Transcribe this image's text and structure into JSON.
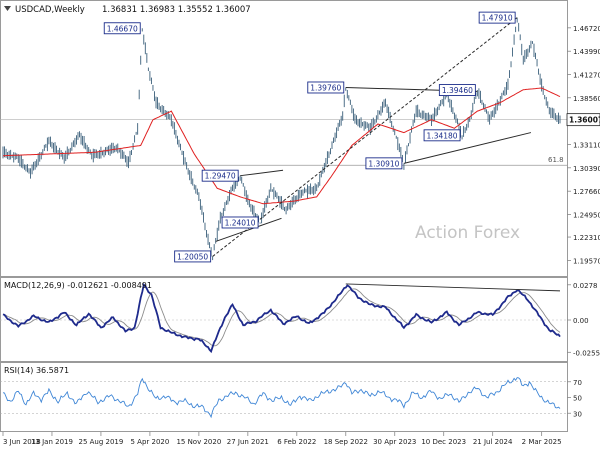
{
  "window": {
    "symbol": "USDCAD,Weekly",
    "ohlc_text": "1.36831 1.36983 1.35552 1.36007",
    "dropdown_icon": "triangle-down-icon"
  },
  "watermark": "Action Forex",
  "colors": {
    "price_line": "#3a5f7a",
    "ma_line": "#e02020",
    "macd_line": "#1e2a8c",
    "signal_line": "#8c8c8c",
    "rsi_line": "#3f86d6",
    "box_border": "#1a2c8a",
    "box_fill": "#ffffff",
    "trend_line": "#2a2a2a",
    "grid": "#c8c8c8"
  },
  "chart_data": [
    {
      "id": "price",
      "type": "line",
      "ylim": [
        1.18,
        1.495
      ],
      "y_ticks": [
        "1.46720",
        "1.43990",
        "1.41270",
        "1.38560",
        "1.33110",
        "1.30390",
        "1.27660",
        "1.24950",
        "1.22310",
        "1.19570"
      ],
      "y_tick_values": [
        1.4672,
        1.4399,
        1.4127,
        1.3856,
        1.3311,
        1.3039,
        1.2766,
        1.2495,
        1.2231,
        1.1957
      ],
      "current_price": "1.36007",
      "current_price_value": 1.36007,
      "fib_label": "61.8",
      "fib_value": 1.3069,
      "x_tick_labels": [
        "3 Jun 2018",
        "13 Jan 2019",
        "25 Aug 2019",
        "5 Apr 2020",
        "15 Nov 2020",
        "27 Jun 2021",
        "6 Feb 2022",
        "18 Sep 2022",
        "30 Apr 2023",
        "10 Dec 2023",
        "21 Jul 2024",
        "2 Mar 2025"
      ],
      "x_tick_index": [
        0,
        32,
        64,
        96,
        128,
        160,
        192,
        224,
        256,
        288,
        320,
        352
      ],
      "anchors": [
        [
          0,
          1.322
        ],
        [
          10,
          1.315
        ],
        [
          18,
          1.298
        ],
        [
          30,
          1.335
        ],
        [
          40,
          1.315
        ],
        [
          50,
          1.342
        ],
        [
          58,
          1.318
        ],
        [
          66,
          1.322
        ],
        [
          74,
          1.328
        ],
        [
          82,
          1.31
        ],
        [
          88,
          1.35
        ],
        [
          91,
          1.4667
        ],
        [
          95,
          1.42
        ],
        [
          100,
          1.38
        ],
        [
          110,
          1.36
        ],
        [
          120,
          1.305
        ],
        [
          128,
          1.27
        ],
        [
          134,
          1.22
        ],
        [
          137,
          1.2005
        ],
        [
          142,
          1.245
        ],
        [
          150,
          1.28
        ],
        [
          155,
          1.2947
        ],
        [
          160,
          1.265
        ],
        [
          168,
          1.2401
        ],
        [
          175,
          1.28
        ],
        [
          185,
          1.255
        ],
        [
          195,
          1.275
        ],
        [
          205,
          1.28
        ],
        [
          213,
          1.32
        ],
        [
          222,
          1.365
        ],
        [
          224,
          1.3976
        ],
        [
          230,
          1.36
        ],
        [
          240,
          1.35
        ],
        [
          250,
          1.38
        ],
        [
          262,
          1.3091
        ],
        [
          270,
          1.37
        ],
        [
          280,
          1.36
        ],
        [
          290,
          1.39
        ],
        [
          300,
          1.3418
        ],
        [
          305,
          1.36
        ],
        [
          310,
          1.3946
        ],
        [
          318,
          1.36
        ],
        [
          330,
          1.4
        ],
        [
          336,
          1.4791
        ],
        [
          340,
          1.43
        ],
        [
          346,
          1.45
        ],
        [
          352,
          1.4
        ],
        [
          357,
          1.37
        ],
        [
          364,
          1.36
        ]
      ],
      "ma_anchors": [
        [
          0,
          1.318
        ],
        [
          30,
          1.32
        ],
        [
          60,
          1.322
        ],
        [
          90,
          1.33
        ],
        [
          98,
          1.36
        ],
        [
          110,
          1.37
        ],
        [
          125,
          1.32
        ],
        [
          140,
          1.28
        ],
        [
          155,
          1.27
        ],
        [
          170,
          1.262
        ],
        [
          190,
          1.265
        ],
        [
          205,
          1.27
        ],
        [
          215,
          1.295
        ],
        [
          228,
          1.33
        ],
        [
          245,
          1.355
        ],
        [
          262,
          1.345
        ],
        [
          280,
          1.36
        ],
        [
          295,
          1.35
        ],
        [
          310,
          1.37
        ],
        [
          325,
          1.38
        ],
        [
          340,
          1.395
        ],
        [
          352,
          1.397
        ],
        [
          364,
          1.387
        ]
      ],
      "trendlines": [
        [
          [
            137,
            1.2005
          ],
          [
            336,
            1.4791
          ]
        ],
        [
          [
            224,
            1.3976
          ],
          [
            310,
            1.393
          ]
        ],
        [
          [
            262,
            1.3091
          ],
          [
            345,
            1.345
          ]
        ],
        [
          [
            155,
            1.2947
          ],
          [
            183,
            1.301
          ]
        ],
        [
          [
            139,
            1.218
          ],
          [
            182,
            1.245
          ]
        ]
      ],
      "annotations": [
        {
          "label": "1.46670",
          "at": [
            91,
            1.4667
          ]
        },
        {
          "label": "1.47910",
          "at": [
            336,
            1.4791
          ]
        },
        {
          "label": "1.39760",
          "at": [
            224,
            1.3976
          ]
        },
        {
          "label": "1.39460",
          "at": [
            310,
            1.3946
          ]
        },
        {
          "label": "1.34180",
          "at": [
            300,
            1.3418
          ]
        },
        {
          "label": "1.30910",
          "at": [
            262,
            1.3091
          ]
        },
        {
          "label": "1.29470",
          "at": [
            155,
            1.2947
          ]
        },
        {
          "label": "1.24010",
          "at": [
            168,
            1.2401
          ]
        },
        {
          "label": "1.20050",
          "at": [
            137,
            1.2005
          ]
        }
      ]
    },
    {
      "id": "macd",
      "type": "line",
      "title": "MACD(12,26,9) -0.012621 -0.008491",
      "ylim": [
        -0.03,
        0.03
      ],
      "y_ticks": [
        "0.0278",
        "0.00",
        "-0.025511"
      ],
      "y_tick_values": [
        0.0278,
        0.0,
        -0.025511
      ],
      "macd_anchors": [
        [
          0,
          0.004
        ],
        [
          10,
          -0.005
        ],
        [
          20,
          0.003
        ],
        [
          30,
          -0.002
        ],
        [
          40,
          0.006
        ],
        [
          48,
          -0.004
        ],
        [
          56,
          0.005
        ],
        [
          64,
          -0.006
        ],
        [
          72,
          0.002
        ],
        [
          80,
          -0.009
        ],
        [
          86,
          -0.006
        ],
        [
          92,
          0.028
        ],
        [
          97,
          0.02
        ],
        [
          103,
          -0.006
        ],
        [
          110,
          -0.01
        ],
        [
          120,
          -0.014
        ],
        [
          128,
          -0.015
        ],
        [
          136,
          -0.024
        ],
        [
          145,
          0.002
        ],
        [
          150,
          0.012
        ],
        [
          157,
          -0.004
        ],
        [
          165,
          -0.001
        ],
        [
          175,
          0.008
        ],
        [
          183,
          -0.003
        ],
        [
          192,
          0.003
        ],
        [
          200,
          -0.003
        ],
        [
          210,
          0.006
        ],
        [
          220,
          0.02
        ],
        [
          225,
          0.028
        ],
        [
          232,
          0.018
        ],
        [
          240,
          0.012
        ],
        [
          250,
          0.01
        ],
        [
          262,
          -0.006
        ],
        [
          270,
          0.004
        ],
        [
          280,
          -0.002
        ],
        [
          290,
          0.006
        ],
        [
          298,
          -0.004
        ],
        [
          310,
          0.006
        ],
        [
          320,
          0.004
        ],
        [
          330,
          0.018
        ],
        [
          336,
          0.024
        ],
        [
          343,
          0.016
        ],
        [
          350,
          0.004
        ],
        [
          357,
          -0.008
        ],
        [
          364,
          -0.0126
        ]
      ],
      "divergence_line": [
        [
          224,
          0.0285
        ],
        [
          364,
          0.023
        ]
      ]
    },
    {
      "id": "rsi",
      "type": "line",
      "title": "RSI(14) 36.5871",
      "ylim": [
        10,
        90
      ],
      "y_ticks": [
        "70",
        "50",
        "30"
      ],
      "y_tick_values": [
        70,
        50,
        30
      ],
      "rsi_anchors": [
        [
          0,
          55
        ],
        [
          5,
          45
        ],
        [
          10,
          58
        ],
        [
          15,
          42
        ],
        [
          20,
          55
        ],
        [
          25,
          48
        ],
        [
          30,
          58
        ],
        [
          36,
          45
        ],
        [
          42,
          55
        ],
        [
          48,
          42
        ],
        [
          55,
          58
        ],
        [
          62,
          44
        ],
        [
          70,
          52
        ],
        [
          76,
          46
        ],
        [
          82,
          38
        ],
        [
          88,
          55
        ],
        [
          91,
          74
        ],
        [
          95,
          62
        ],
        [
          100,
          48
        ],
        [
          106,
          52
        ],
        [
          112,
          44
        ],
        [
          118,
          46
        ],
        [
          124,
          40
        ],
        [
          130,
          38
        ],
        [
          136,
          28
        ],
        [
          141,
          46
        ],
        [
          146,
          52
        ],
        [
          152,
          56
        ],
        [
          158,
          50
        ],
        [
          164,
          42
        ],
        [
          170,
          55
        ],
        [
          176,
          46
        ],
        [
          182,
          50
        ],
        [
          188,
          40
        ],
        [
          194,
          52
        ],
        [
          200,
          46
        ],
        [
          206,
          52
        ],
        [
          212,
          58
        ],
        [
          218,
          60
        ],
        [
          224,
          70
        ],
        [
          228,
          55
        ],
        [
          234,
          60
        ],
        [
          240,
          52
        ],
        [
          246,
          58
        ],
        [
          252,
          50
        ],
        [
          258,
          46
        ],
        [
          262,
          40
        ],
        [
          268,
          56
        ],
        [
          274,
          50
        ],
        [
          280,
          58
        ],
        [
          286,
          48
        ],
        [
          292,
          55
        ],
        [
          298,
          44
        ],
        [
          304,
          56
        ],
        [
          310,
          62
        ],
        [
          316,
          50
        ],
        [
          322,
          56
        ],
        [
          328,
          66
        ],
        [
          333,
          72
        ],
        [
          336,
          76
        ],
        [
          340,
          64
        ],
        [
          344,
          70
        ],
        [
          348,
          58
        ],
        [
          352,
          50
        ],
        [
          356,
          44
        ],
        [
          360,
          40
        ],
        [
          364,
          36.6
        ]
      ]
    }
  ]
}
